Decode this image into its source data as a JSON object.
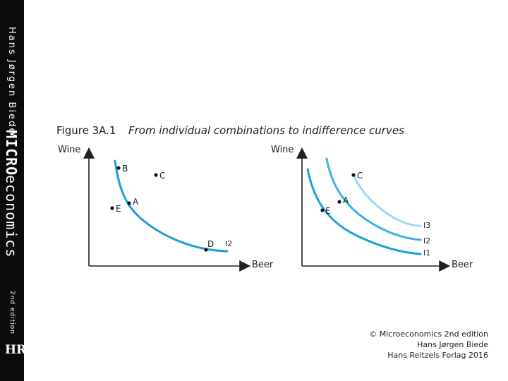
{
  "spine": {
    "author": "Hans Jørgen Biede",
    "title_mono": "MICRO",
    "title_rest": "economics",
    "edition": "2nd edition",
    "publisher_logo": "HR"
  },
  "figure": {
    "number": "Figure 3A.1",
    "caption": "From individual combinations to indifference curves"
  },
  "left_panel": {
    "ylabel": "Wine",
    "xlabel": "Beer",
    "points": [
      "B",
      "C",
      "A",
      "E",
      "D"
    ],
    "curve_label": "I2"
  },
  "right_panel": {
    "ylabel": "Wine",
    "xlabel": "Beer",
    "points": [
      "C",
      "A",
      "E"
    ],
    "curve_labels": [
      "I3",
      "I2",
      "I1"
    ]
  },
  "colors": {
    "curve_dark": "#1d9fd4",
    "curve_mid": "#3bb2e0",
    "curve_light": "#9fd6ef",
    "spine": "#0b0b0b"
  },
  "copyright": {
    "line1": "© Microeconomics 2nd edition",
    "line2": "Hans Jørgen Biede",
    "line3": "Hans Reitzels Forlag 2016"
  }
}
